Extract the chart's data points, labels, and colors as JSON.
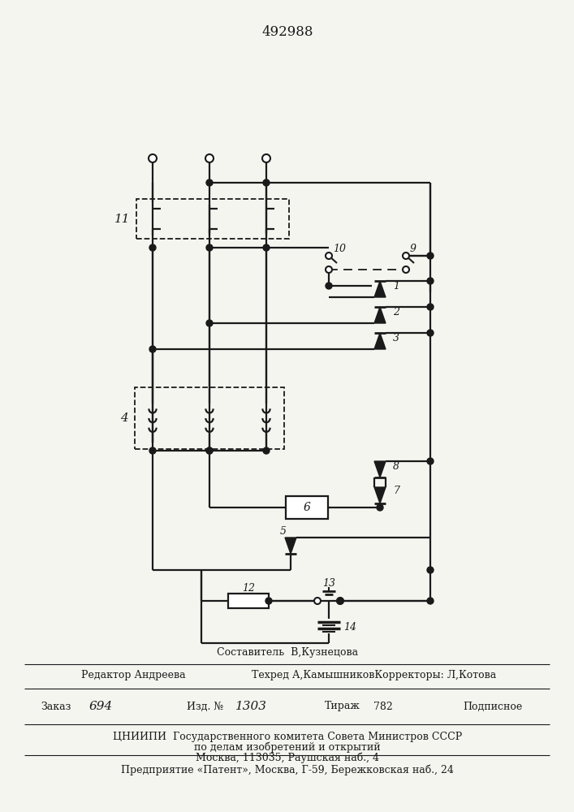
{
  "title": "492988",
  "bg_color": "#f5f5f0",
  "line_color": "#1a1a1a",
  "lw": 1.6,
  "dlw": 1.3,
  "footer": {
    "line1": "Составитель  В,Кузнецова",
    "line2_left": "Редактор Андреева",
    "line2_mid": "Техред А,КамышниковКорректоры: Л,Котова",
    "zak_label": "Заказ",
    "zak_val": "694",
    "izd_label": "Изд. №",
    "izd_val": "1303",
    "tir_label": "Тираж",
    "tir_val": "782",
    "podp": "Подписное",
    "cniip1": "ЦНИИПИ  Государственного комитета Совета Министров СССР",
    "cniip2": "по делам изобретений и открытий",
    "cniip3": "Москва, 113035, Раушская наб., 4",
    "patent": "Предприятие «Патент», Москва, Г-59, Бережковская наб., 24"
  }
}
